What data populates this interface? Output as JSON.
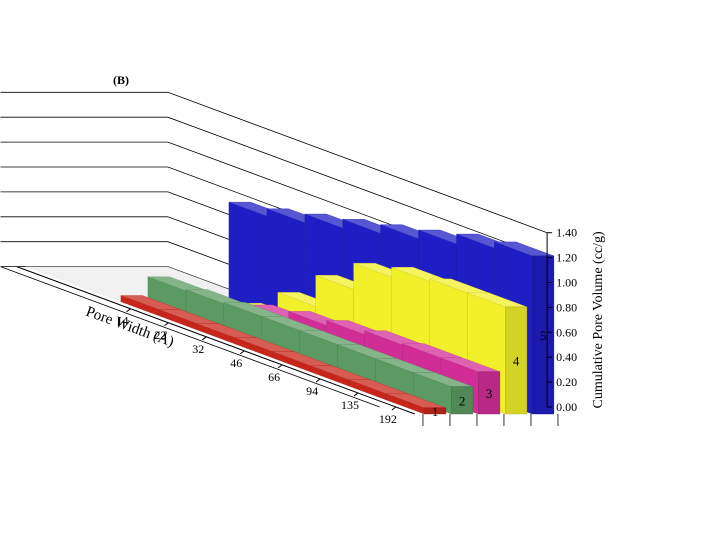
{
  "panel_label": "(B)",
  "chart_data": {
    "type": "bar",
    "style": "3d-stacked-depth",
    "xlabel": "Pore Width (Å)",
    "ylabel": "Cumulative Pore Volume (cc/g)",
    "ylim": [
      0,
      1.4
    ],
    "yticks": [
      "0.00",
      "0.20",
      "0.40",
      "0.60",
      "0.80",
      "1.00",
      "1.20",
      "1.40"
    ],
    "categories": [
      "14",
      "22",
      "32",
      "46",
      "66",
      "94",
      "135",
      "192"
    ],
    "grid": true,
    "series": [
      {
        "name": "1",
        "color": "#c8261b",
        "values": [
          0.05,
          0.05,
          0.05,
          0.05,
          0.05,
          0.05,
          0.05,
          0.05
        ]
      },
      {
        "name": "2",
        "color": "#5c9a63",
        "values": [
          0.2,
          0.21,
          0.22,
          0.22,
          0.22,
          0.22,
          0.22,
          0.22
        ]
      },
      {
        "name": "3",
        "color": "#d12d97",
        "values": [
          0.08,
          0.12,
          0.2,
          0.26,
          0.3,
          0.33,
          0.34,
          0.34
        ]
      },
      {
        "name": "4",
        "color": "#f2ef2b",
        "values": [
          0.04,
          0.1,
          0.3,
          0.55,
          0.76,
          0.84,
          0.86,
          0.86
        ]
      },
      {
        "name": "5",
        "color": "#1f1ec4",
        "values": [
          0.8,
          0.86,
          0.93,
          1.0,
          1.07,
          1.14,
          1.22,
          1.27
        ]
      }
    ]
  }
}
